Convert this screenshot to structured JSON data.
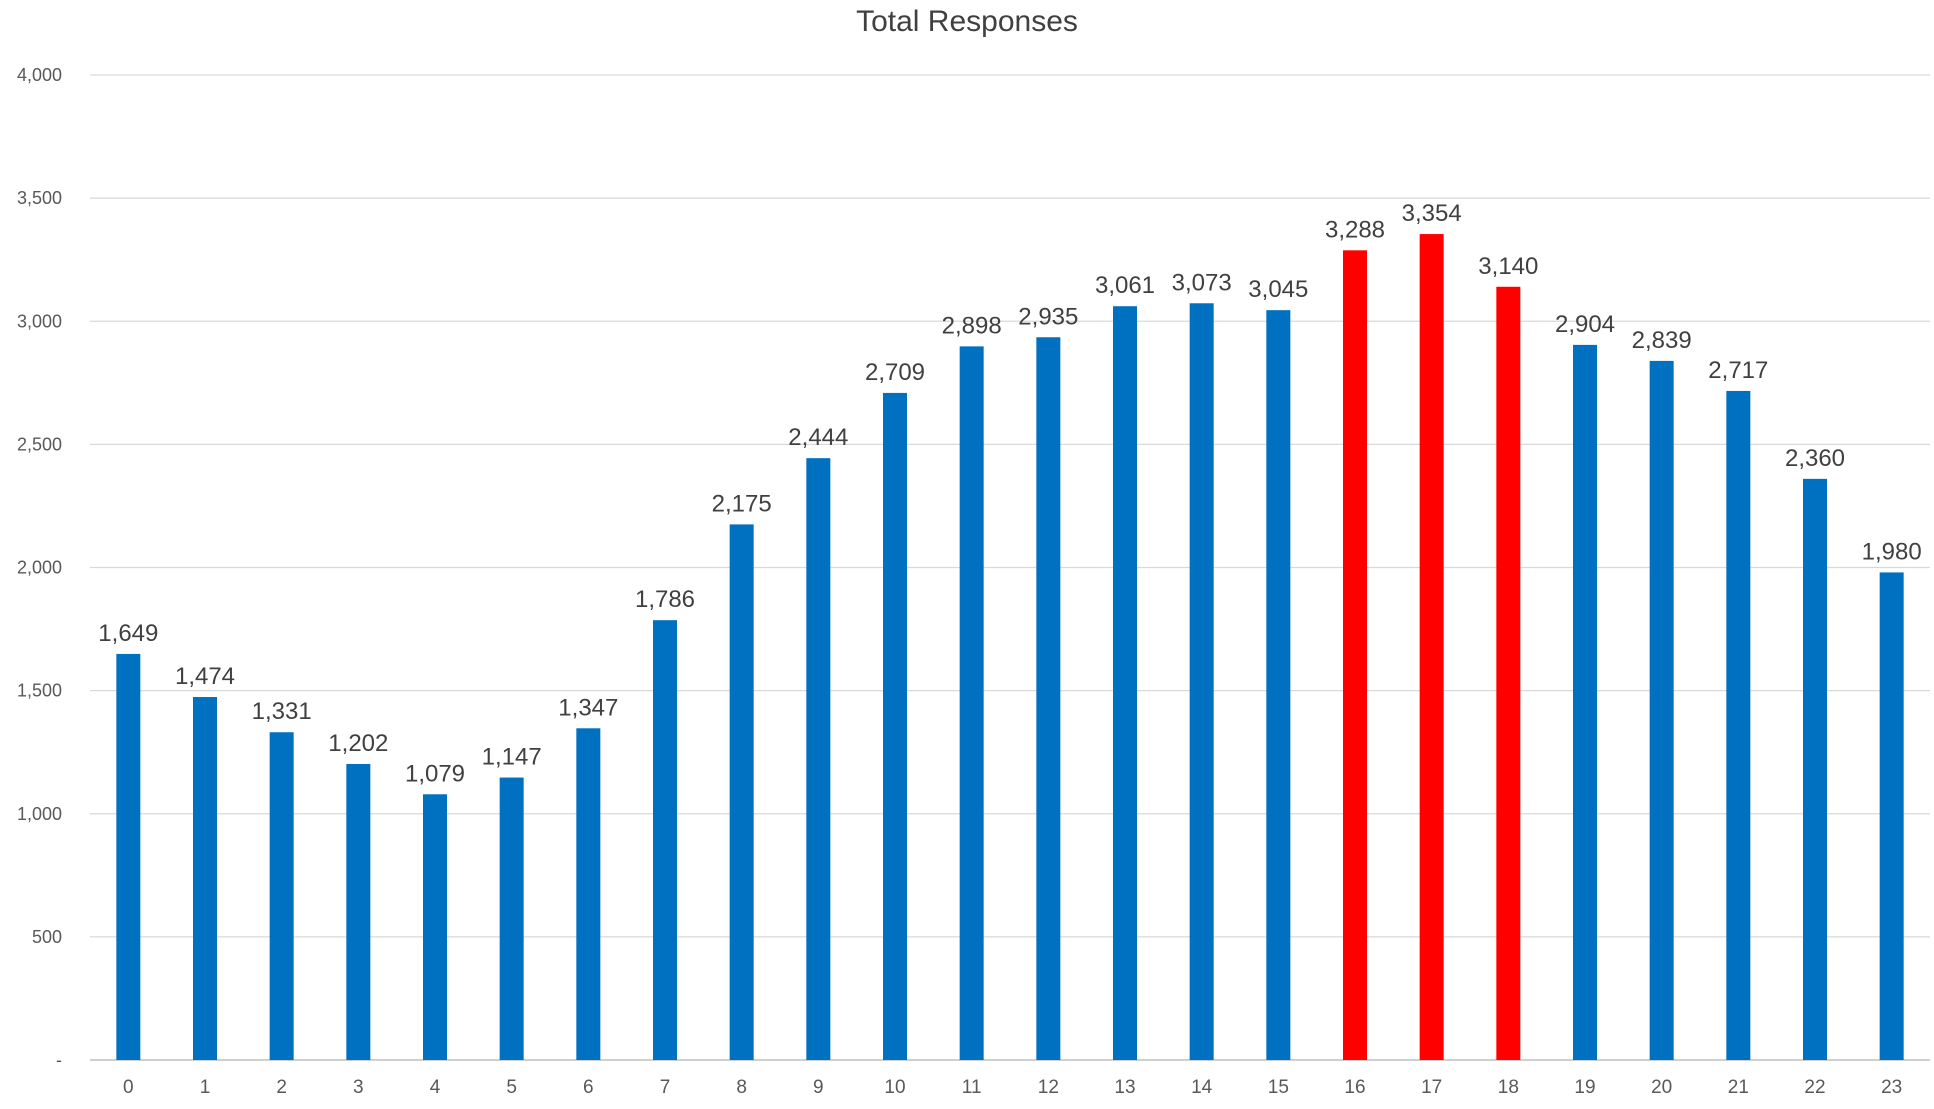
{
  "chart_data": {
    "type": "bar",
    "title": "Total Responses",
    "xlabel": "",
    "ylabel": "",
    "categories": [
      "0",
      "1",
      "2",
      "3",
      "4",
      "5",
      "6",
      "7",
      "8",
      "9",
      "10",
      "11",
      "12",
      "13",
      "14",
      "15",
      "16",
      "17",
      "18",
      "19",
      "20",
      "21",
      "22",
      "23"
    ],
    "values": [
      1649,
      1474,
      1331,
      1202,
      1079,
      1147,
      1347,
      1786,
      2175,
      2444,
      2709,
      2898,
      2935,
      3061,
      3073,
      3045,
      3288,
      3354,
      3140,
      2904,
      2839,
      2717,
      2360,
      1980
    ],
    "data_labels": [
      "1,649",
      "1,474",
      "1,331",
      "1,202",
      "1,079",
      "1,147",
      "1,347",
      "1,786",
      "2,175",
      "2,444",
      "2,709",
      "2,898",
      "2,935",
      "3,061",
      "3,073",
      "3,045",
      "3,288",
      "3,354",
      "3,140",
      "2,904",
      "2,839",
      "2,717",
      "2,360",
      "1,980"
    ],
    "highlighted_categories": [
      "16",
      "17",
      "18"
    ],
    "ylim": [
      0,
      4000
    ],
    "y_ticks": [
      0,
      500,
      1000,
      1500,
      2000,
      2500,
      3000,
      3500,
      4000
    ],
    "y_tick_labels": [
      "-",
      "500",
      "1,000",
      "1,500",
      "2,000",
      "2,500",
      "3,000",
      "3,500",
      "4,000"
    ],
    "grid": true,
    "legend": "none",
    "colors": {
      "bar": "#0070c0",
      "highlight": "#ff0000",
      "grid": "#d9d9d9",
      "text": "#404040"
    }
  }
}
